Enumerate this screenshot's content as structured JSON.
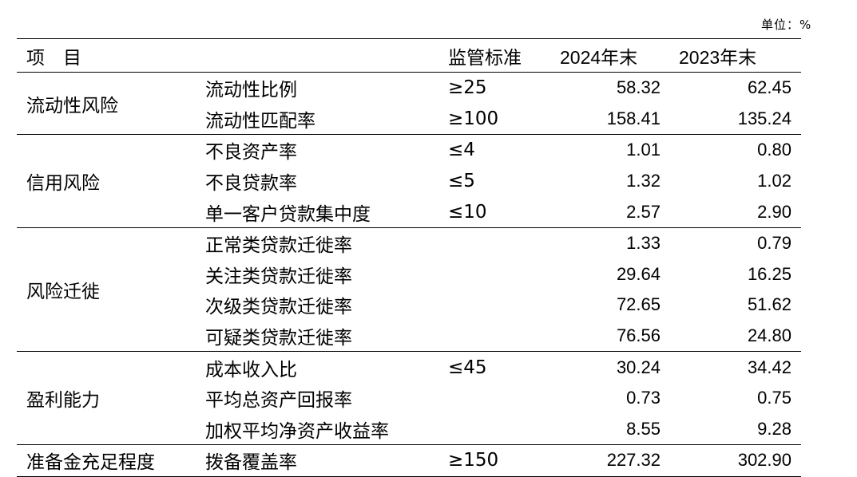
{
  "unit_label": "单位：%",
  "header": {
    "item": "项　目",
    "standard": "监管标准",
    "year1": "2024年末",
    "year2": "2023年末"
  },
  "groups": [
    {
      "category": "流动性风险",
      "rows": [
        {
          "item": "流动性比例",
          "standard": "≥25",
          "v2024": "58.32",
          "v2023": "62.45"
        },
        {
          "item": "流动性匹配率",
          "standard": "≥100",
          "v2024": "158.41",
          "v2023": "135.24"
        }
      ]
    },
    {
      "category": "信用风险",
      "rows": [
        {
          "item": "不良资产率",
          "standard": "≤4",
          "v2024": "1.01",
          "v2023": "0.80"
        },
        {
          "item": "不良贷款率",
          "standard": "≤5",
          "v2024": "1.32",
          "v2023": "1.02"
        },
        {
          "item": "单一客户贷款集中度",
          "standard": "≤10",
          "v2024": "2.57",
          "v2023": "2.90"
        }
      ]
    },
    {
      "category": "风险迁徙",
      "rows": [
        {
          "item": "正常类贷款迁徙率",
          "standard": "",
          "v2024": "1.33",
          "v2023": "0.79"
        },
        {
          "item": "关注类贷款迁徙率",
          "standard": "",
          "v2024": "29.64",
          "v2023": "16.25"
        },
        {
          "item": "次级类贷款迁徙率",
          "standard": "",
          "v2024": "72.65",
          "v2023": "51.62"
        },
        {
          "item": "可疑类贷款迁徙率",
          "standard": "",
          "v2024": "76.56",
          "v2023": "24.80"
        }
      ]
    },
    {
      "category": "盈利能力",
      "rows": [
        {
          "item": "成本收入比",
          "standard": "≤45",
          "v2024": "30.24",
          "v2023": "34.42"
        },
        {
          "item": "平均总资产回报率",
          "standard": "",
          "v2024": "0.73",
          "v2023": "0.75"
        },
        {
          "item": "加权平均净资产收益率",
          "standard": "",
          "v2024": "8.55",
          "v2023": "9.28"
        }
      ]
    },
    {
      "category": "准备金充足程度",
      "rows": [
        {
          "item": "拨备覆盖率",
          "standard": "≥150",
          "v2024": "227.32",
          "v2023": "302.90"
        }
      ]
    }
  ]
}
